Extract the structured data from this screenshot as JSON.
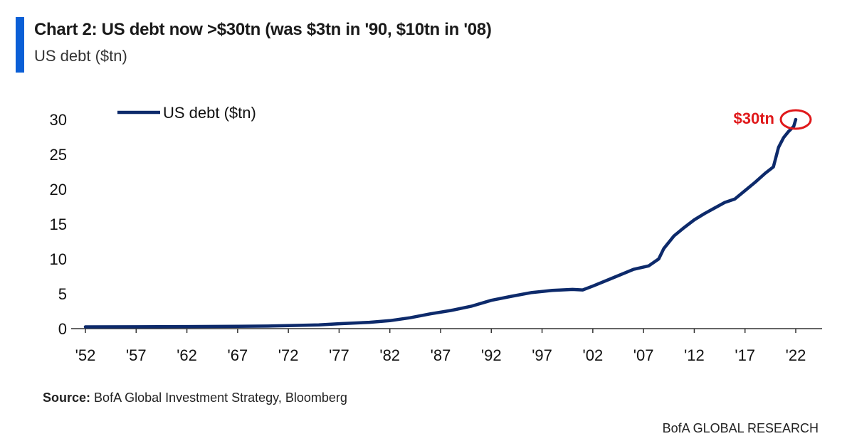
{
  "header": {
    "title": "Chart 2: US debt now >$30tn (was $3tn in '90, $10tn in '08)",
    "subtitle": "US debt ($tn)"
  },
  "colors": {
    "accent": "#0b5fd6",
    "line": "#0d2a6b",
    "annotation": "#e0191b",
    "axis": "#333333"
  },
  "chart_data": {
    "type": "line",
    "xlim": [
      1952,
      2022
    ],
    "ylim": [
      0,
      30
    ],
    "yticks": [
      0,
      5,
      10,
      15,
      20,
      25,
      30
    ],
    "xtick_values": [
      1952,
      1957,
      1962,
      1967,
      1972,
      1977,
      1982,
      1987,
      1992,
      1997,
      2002,
      2007,
      2012,
      2017,
      2022
    ],
    "xtick_labels": [
      "'52",
      "'57",
      "'62",
      "'67",
      "'72",
      "'77",
      "'82",
      "'87",
      "'92",
      "'97",
      "'02",
      "'07",
      "'12",
      "'17",
      "'22"
    ],
    "legend": {
      "position": "top-left"
    },
    "series": [
      {
        "name": "US debt ($tn)",
        "x": [
          1952,
          1957,
          1962,
          1967,
          1970,
          1972,
          1975,
          1977,
          1980,
          1982,
          1984,
          1986,
          1988,
          1990,
          1992,
          1994,
          1996,
          1998,
          2000,
          2001,
          2002,
          2004,
          2006,
          2007.5,
          2008.5,
          2009,
          2010,
          2011,
          2012,
          2013,
          2014,
          2015,
          2016,
          2017,
          2018,
          2019,
          2019.8,
          2020.3,
          2020.8,
          2021.3,
          2021.8,
          2022
        ],
        "y": [
          0.26,
          0.27,
          0.3,
          0.33,
          0.37,
          0.43,
          0.53,
          0.7,
          0.91,
          1.14,
          1.56,
          2.12,
          2.6,
          3.2,
          4.06,
          4.64,
          5.18,
          5.48,
          5.62,
          5.55,
          6.1,
          7.3,
          8.5,
          9.0,
          10.0,
          11.5,
          13.3,
          14.5,
          15.6,
          16.5,
          17.3,
          18.1,
          18.6,
          19.8,
          21.0,
          22.3,
          23.2,
          26.0,
          27.4,
          28.3,
          29.0,
          30.0
        ]
      }
    ],
    "annotations": [
      {
        "text": "$30tn",
        "x": 2022,
        "y": 30
      }
    ]
  },
  "source": {
    "label": "Source:",
    "text": "BofA Global Investment Strategy, Bloomberg"
  },
  "footer": "BofA GLOBAL RESEARCH"
}
